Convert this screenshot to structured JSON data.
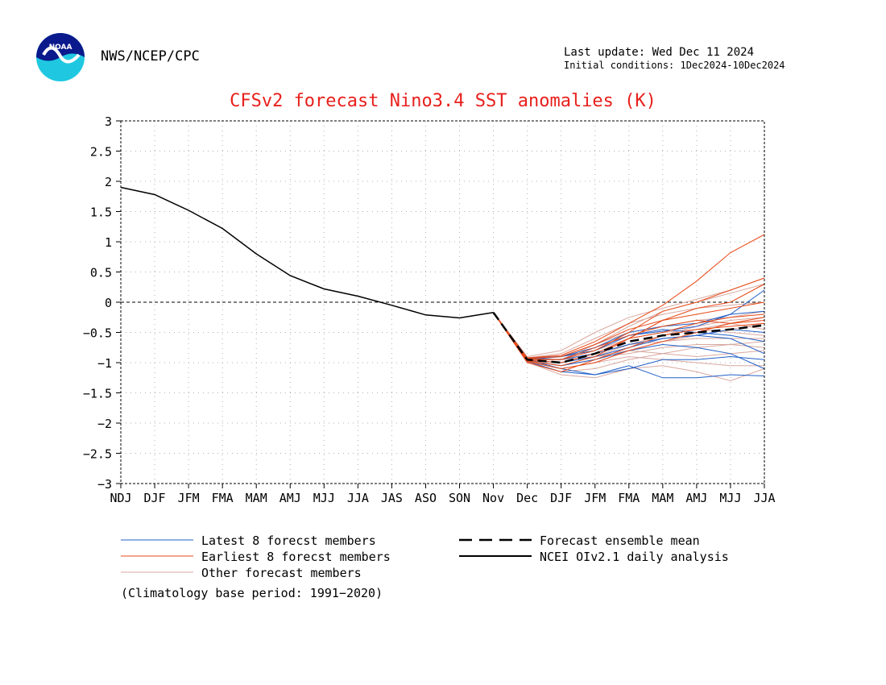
{
  "header": {
    "agency": "NWS/NCEP/CPC",
    "last_update": "Last update: Wed Dec 11 2024",
    "initial_conditions": "Initial conditions: 1Dec2024-10Dec2024",
    "logo_text": "NOAA"
  },
  "chart_data": {
    "type": "line",
    "title": "CFSv2 forecast Nino3.4 SST anomalies (K)",
    "xlabel": "",
    "ylabel": "",
    "categories": [
      "NDJ",
      "DJF",
      "JFM",
      "FMA",
      "MAM",
      "AMJ",
      "MJJ",
      "JJA",
      "JAS",
      "ASO",
      "SON",
      "Nov",
      "Dec",
      "DJF",
      "JFM",
      "FMA",
      "MAM",
      "AMJ",
      "MJJ",
      "JJA"
    ],
    "ylim": [
      -3,
      3
    ],
    "yticks": [
      3,
      2.5,
      2,
      1.5,
      1,
      0.5,
      0,
      -0.5,
      -1,
      -1.5,
      -2,
      -2.5,
      -3
    ],
    "ytick_labels": [
      "3",
      "2.5",
      "2",
      "1.5",
      "1",
      "0.5",
      "0",
      "−0.5",
      "−1",
      "−1.5",
      "−2",
      "−2.5",
      "−3"
    ],
    "grid": true,
    "zero_line": 0,
    "observed": [
      1.9,
      1.78,
      1.52,
      1.22,
      0.8,
      0.44,
      0.22,
      0.1,
      -0.05,
      -0.21,
      -0.26,
      -0.17
    ],
    "ensemble_mean": [
      -0.17,
      -0.95,
      -1.0,
      -0.85,
      -0.65,
      -0.55,
      -0.5,
      -0.45,
      -0.38
    ],
    "latest_members": [
      [
        -0.17,
        -0.93,
        -0.95,
        -0.75,
        -0.55,
        -0.48,
        -0.4,
        -0.2,
        0.2
      ],
      [
        -0.17,
        -0.95,
        -1.1,
        -1.2,
        -1.05,
        -1.25,
        -1.25,
        -1.2,
        -1.22
      ],
      [
        -0.17,
        -0.97,
        -1.05,
        -0.95,
        -0.8,
        -0.7,
        -0.75,
        -0.85,
        -1.1
      ],
      [
        -0.17,
        -0.92,
        -0.9,
        -0.75,
        -0.5,
        -0.4,
        -0.35,
        -0.2,
        -0.15
      ],
      [
        -0.17,
        -0.96,
        -1.0,
        -0.9,
        -0.75,
        -0.6,
        -0.55,
        -0.45,
        -0.5
      ],
      [
        -0.17,
        -0.94,
        -0.95,
        -0.85,
        -0.7,
        -0.6,
        -0.55,
        -0.6,
        -0.85
      ],
      [
        -0.17,
        -0.98,
        -1.15,
        -1.2,
        -1.1,
        -0.95,
        -0.95,
        -0.9,
        -0.95
      ],
      [
        -0.17,
        -0.95,
        -0.9,
        -0.8,
        -0.55,
        -0.45,
        -0.5,
        -0.55,
        -0.65
      ]
    ],
    "earliest_members": [
      [
        -0.17,
        -0.92,
        -0.88,
        -0.65,
        -0.35,
        -0.05,
        0.35,
        0.82,
        1.12
      ],
      [
        -0.17,
        -0.95,
        -0.95,
        -0.8,
        -0.5,
        -0.15,
        0.0,
        0.2,
        0.4
      ],
      [
        -0.17,
        -0.97,
        -1.05,
        -0.9,
        -0.6,
        -0.3,
        -0.1,
        0.0,
        0.3
      ],
      [
        -0.17,
        -0.93,
        -0.9,
        -0.7,
        -0.45,
        -0.3,
        -0.2,
        -0.1,
        0.0
      ],
      [
        -0.17,
        -0.96,
        -1.0,
        -0.85,
        -0.6,
        -0.5,
        -0.35,
        -0.25,
        -0.2
      ],
      [
        -0.17,
        -0.98,
        -1.1,
        -1.0,
        -0.8,
        -0.65,
        -0.5,
        -0.35,
        -0.25
      ],
      [
        -0.17,
        -0.94,
        -0.95,
        -0.75,
        -0.55,
        -0.4,
        -0.3,
        -0.35,
        -0.3
      ],
      [
        -0.17,
        -1.0,
        -1.15,
        -0.95,
        -0.75,
        -0.55,
        -0.45,
        -0.4,
        -0.35
      ]
    ],
    "other_members": [
      [
        -0.17,
        -0.9,
        -0.8,
        -0.5,
        -0.25,
        -0.1,
        0.05,
        0.2,
        0.4
      ],
      [
        -0.17,
        -0.95,
        -0.95,
        -0.7,
        -0.4,
        -0.15,
        0.0,
        0.15,
        0.3
      ],
      [
        -0.17,
        -0.97,
        -1.05,
        -0.95,
        -0.75,
        -0.55,
        -0.4,
        -0.3,
        -0.25
      ],
      [
        -0.17,
        -0.93,
        -0.9,
        -0.8,
        -0.6,
        -0.5,
        -0.45,
        -0.5,
        -0.55
      ],
      [
        -0.17,
        -1.0,
        -1.15,
        -1.1,
        -0.95,
        -0.85,
        -0.75,
        -0.7,
        -0.75
      ],
      [
        -0.17,
        -0.99,
        -1.2,
        -1.25,
        -1.1,
        -1.05,
        -1.15,
        -1.3,
        -1.1
      ],
      [
        -0.17,
        -0.94,
        -0.9,
        -0.7,
        -0.5,
        -0.4,
        -0.3,
        -0.25,
        -0.15
      ],
      [
        -0.17,
        -0.96,
        -1.0,
        -0.9,
        -0.85,
        -0.75,
        -0.7,
        -0.7,
        -0.65
      ],
      [
        -0.17,
        -0.92,
        -0.85,
        -0.6,
        -0.35,
        -0.2,
        -0.1,
        -0.05,
        0.0
      ],
      [
        -0.17,
        -0.98,
        -1.1,
        -1.0,
        -0.9,
        -0.95,
        -1.0,
        -1.05,
        -1.05
      ],
      [
        -0.17,
        -0.95,
        -1.0,
        -0.85,
        -0.7,
        -0.65,
        -0.6,
        -0.6,
        -0.6
      ],
      [
        -0.17,
        -0.97,
        -1.0,
        -0.9,
        -0.7,
        -0.55,
        -0.45,
        -0.35,
        -0.45
      ],
      [
        -0.17,
        -0.93,
        -0.95,
        -0.9,
        -0.8,
        -0.85,
        -0.9,
        -0.85,
        -0.8
      ],
      [
        -0.17,
        -0.96,
        -1.05,
        -0.95,
        -0.8,
        -0.65,
        -0.55,
        -0.45,
        -0.35
      ]
    ],
    "legend": {
      "latest": "Latest 8 forecst members",
      "earliest": "Earliest 8 forecst members",
      "other": "Other forecast members",
      "mean": "Forecast ensemble mean",
      "observed": "NCEI OIv2.1 daily analysis",
      "note": "(Climatology base period: 1991−2020)",
      "placement": "below"
    },
    "colors": {
      "title": "#e8201c",
      "latest": "#2060c8",
      "earliest": "#e84a18",
      "other": "#d8a8a0",
      "mean": "#000000",
      "observed": "#000000",
      "grid": "#b0b0b0"
    }
  }
}
